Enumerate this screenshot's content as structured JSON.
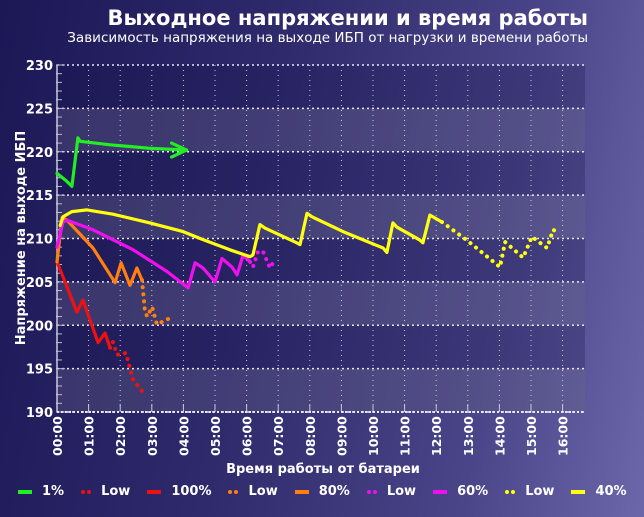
{
  "chart_data": {
    "type": "line",
    "title": "Выходное напряжении и время работы",
    "subtitle": "Зависимость напряжения на выходе ИБП от нагрузки и времени работы",
    "xlabel": "Время работы от батареи",
    "ylabel": "Напряжение на выходе ИБП",
    "xlim": [
      0,
      16.7
    ],
    "ylim": [
      190,
      230
    ],
    "x_unit": "hours",
    "x_ticks": [
      "00:00",
      "01:00",
      "02:00",
      "03:00",
      "04:00",
      "05:00",
      "06:00",
      "07:00",
      "08:00",
      "09:00",
      "10:00",
      "11:00",
      "12:00",
      "13:00",
      "14:00",
      "15:00",
      "16:00"
    ],
    "y_ticks": [
      190,
      195,
      200,
      205,
      210,
      215,
      220,
      225,
      230
    ],
    "grid": true,
    "legend_position": "bottom",
    "series": [
      {
        "name": "1%",
        "color": "#22ee22",
        "style": "solid",
        "arrow": true,
        "x": [
          0,
          0.28,
          0.47,
          0.66,
          0.73,
          1.68,
          2.94,
          4.1
        ],
        "y": [
          217.5,
          216.7,
          216.0,
          221.6,
          221.2,
          220.8,
          220.4,
          220.2
        ]
      },
      {
        "name": "Low",
        "color": "#ee1111",
        "style": "dotted",
        "x": [
          1.68,
          1.77,
          1.9,
          2.18,
          2.41,
          2.69
        ],
        "y": [
          197.4,
          198.1,
          196.6,
          196.8,
          193.7,
          192.4
        ]
      },
      {
        "name": "100%",
        "color": "#ee1111",
        "style": "solid",
        "x": [
          0,
          0.32,
          0.63,
          0.82,
          1.3,
          1.52,
          1.68
        ],
        "y": [
          207.3,
          204.4,
          201.5,
          202.9,
          198.0,
          199.1,
          197.4
        ]
      },
      {
        "name": "Low",
        "color": "#ff7f10",
        "style": "dotted",
        "x": [
          2.69,
          2.78,
          2.85,
          3.01,
          3.16,
          3.67
        ],
        "y": [
          205.2,
          201.8,
          201.0,
          202.1,
          200.1,
          201.0
        ]
      },
      {
        "name": "80%",
        "color": "#ff7f10",
        "style": "solid",
        "x": [
          0,
          0.16,
          0.32,
          1.14,
          1.84,
          2.03,
          2.31,
          2.53,
          2.69
        ],
        "y": [
          207.3,
          212.4,
          212.1,
          208.9,
          204.9,
          207.2,
          204.6,
          206.6,
          205.2
        ]
      },
      {
        "name": "Low",
        "color": "#ee11ee",
        "style": "dotted",
        "x": [
          6.11,
          6.2,
          6.36,
          6.52,
          6.74,
          6.9
        ],
        "y": [
          207.3,
          206.7,
          208.5,
          208.5,
          206.6,
          207.6
        ]
      },
      {
        "name": "60%",
        "color": "#ee11ee",
        "style": "solid",
        "x": [
          0,
          0.19,
          0.32,
          1.14,
          2.41,
          3.48,
          4.15,
          4.37,
          4.62,
          5.0,
          5.22,
          5.54,
          5.7,
          5.89,
          6.11
        ],
        "y": [
          209.0,
          211.9,
          212.1,
          211.0,
          208.7,
          206.2,
          204.3,
          207.2,
          206.6,
          205.0,
          207.7,
          206.7,
          205.8,
          208.1,
          207.3
        ]
      },
      {
        "name": "Low",
        "color": "#ffff10",
        "style": "dotted",
        "x": [
          12.18,
          12.97,
          14.02,
          14.18,
          14.75,
          15.03,
          15.51,
          15.7,
          15.82
        ],
        "y": [
          211.9,
          209.8,
          206.7,
          209.6,
          207.8,
          210.2,
          208.9,
          211.0,
          210.8
        ]
      },
      {
        "name": "40%",
        "color": "#ffff10",
        "style": "solid",
        "x": [
          0.1,
          0.19,
          0.47,
          0.95,
          1.77,
          2.94,
          3.99,
          4.53,
          5.47,
          6.11,
          6.2,
          6.42,
          6.58,
          7.59,
          7.69,
          7.91,
          8.07,
          9.05,
          10.32,
          10.44,
          10.63,
          10.76,
          11.49,
          11.58,
          11.8,
          12.18
        ],
        "y": [
          211.5,
          212.5,
          213.1,
          213.3,
          212.8,
          211.8,
          210.8,
          210.0,
          208.7,
          207.9,
          208.1,
          211.6,
          211.2,
          209.5,
          209.3,
          212.9,
          212.5,
          210.8,
          208.9,
          208.4,
          211.8,
          211.3,
          209.8,
          209.5,
          212.7,
          211.9
        ]
      }
    ]
  }
}
